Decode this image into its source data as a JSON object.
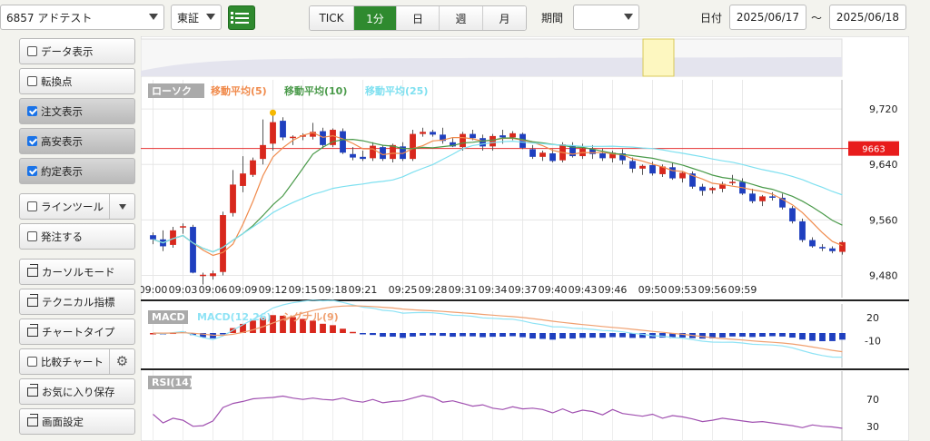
{
  "toolbar": {
    "symbol": "6857 アドテスト",
    "market": "東証",
    "period_tabs": [
      {
        "label": "TICK",
        "active": false
      },
      {
        "label": "1分",
        "active": true
      },
      {
        "label": "日",
        "active": false
      },
      {
        "label": "週",
        "active": false
      },
      {
        "label": "月",
        "active": false
      }
    ],
    "period_label": "期間",
    "period_value": "",
    "date_label": "日付",
    "date_from": "2025/06/17",
    "date_sep": "～",
    "date_to": "2025/06/18"
  },
  "sidebar": [
    {
      "label": "データ表示",
      "type": "check",
      "checked": false,
      "active": false
    },
    {
      "label": "転換点",
      "type": "check",
      "checked": false,
      "active": false
    },
    {
      "label": "注文表示",
      "type": "check",
      "checked": true,
      "active": true
    },
    {
      "label": "高安表示",
      "type": "check",
      "checked": true,
      "active": true
    },
    {
      "label": "約定表示",
      "type": "check",
      "checked": true,
      "active": true
    },
    {
      "label": "ラインツール",
      "type": "check-dropdown",
      "checked": false,
      "active": false
    },
    {
      "label": "発注する",
      "type": "check",
      "checked": false,
      "active": false
    },
    {
      "label": "カーソルモード",
      "type": "window",
      "active": false
    },
    {
      "label": "テクニカル指標",
      "type": "window",
      "active": false
    },
    {
      "label": "チャートタイプ",
      "type": "window",
      "active": false
    },
    {
      "label": "比較チャート",
      "type": "check-gear",
      "checked": false,
      "active": false
    },
    {
      "label": "お気に入り保存",
      "type": "window",
      "active": false
    },
    {
      "label": "画面設定",
      "type": "window",
      "active": false
    }
  ],
  "colors": {
    "up": "#d8281d",
    "down": "#1f3fbf",
    "ma5": "#f08a4b",
    "ma10": "#4a9a4a",
    "ma25": "#7ee0f0",
    "price_line": "#e53030",
    "macd": "#8fe3f5",
    "signal": "#f0a070",
    "rsi": "#a050b0",
    "accent": "#2f8a2f"
  },
  "chart_data": {
    "type": "candlestick",
    "legend": [
      "ローソク",
      "移動平均(5)",
      "移動平均(10)",
      "移動平均(25)"
    ],
    "y_ticks": [
      9720,
      9640,
      9560,
      9480
    ],
    "ylim": [
      9448,
      9762
    ],
    "current_price": 9663,
    "x_labels": [
      "09:00",
      "09:03",
      "09:06",
      "09:09",
      "09:12",
      "09:15",
      "09:18",
      "09:21",
      "09:25",
      "09:28",
      "09:31",
      "09:34",
      "09:37",
      "09:40",
      "09:43",
      "09:46",
      "09:50",
      "09:53",
      "09:56",
      "09:59"
    ],
    "x_label_index": [
      0,
      3,
      6,
      9,
      12,
      15,
      18,
      21,
      25,
      28,
      31,
      34,
      37,
      40,
      43,
      46,
      50,
      53,
      56,
      59
    ],
    "candles": [
      [
        9538,
        9542,
        9525,
        9532
      ],
      [
        9532,
        9545,
        9515,
        9522
      ],
      [
        9524,
        9550,
        9520,
        9545
      ],
      [
        9549,
        9555,
        9540,
        9551
      ],
      [
        9550,
        9553,
        9483,
        9484
      ],
      [
        9480,
        9484,
        9467,
        9481
      ],
      [
        9479,
        9487,
        9474,
        9483
      ],
      [
        9485,
        9572,
        9480,
        9567
      ],
      [
        9570,
        9632,
        9565,
        9611
      ],
      [
        9609,
        9652,
        9600,
        9627
      ],
      [
        9625,
        9650,
        9622,
        9646
      ],
      [
        9648,
        9705,
        9640,
        9668
      ],
      [
        9670,
        9712,
        9660,
        9701
      ],
      [
        9703,
        9708,
        9675,
        9679
      ],
      [
        9678,
        9682,
        9668,
        9680
      ],
      [
        9680,
        9685,
        9675,
        9682
      ],
      [
        9680,
        9700,
        9676,
        9687
      ],
      [
        9688,
        9693,
        9663,
        9668
      ],
      [
        9668,
        9692,
        9665,
        9690
      ],
      [
        9688,
        9692,
        9655,
        9657
      ],
      [
        9655,
        9665,
        9646,
        9650
      ],
      [
        9651,
        9660,
        9645,
        9648
      ],
      [
        9649,
        9672,
        9645,
        9667
      ],
      [
        9665,
        9668,
        9645,
        9648
      ],
      [
        9648,
        9670,
        9643,
        9668
      ],
      [
        9666,
        9672,
        9645,
        9648
      ],
      [
        9648,
        9690,
        9645,
        9684
      ],
      [
        9684,
        9693,
        9680,
        9687
      ],
      [
        9687,
        9690,
        9680,
        9683
      ],
      [
        9683,
        9693,
        9670,
        9674
      ],
      [
        9672,
        9678,
        9665,
        9666
      ],
      [
        9665,
        9687,
        9660,
        9684
      ],
      [
        9684,
        9690,
        9675,
        9678
      ],
      [
        9678,
        9683,
        9660,
        9666
      ],
      [
        9666,
        9684,
        9660,
        9681
      ],
      [
        9682,
        9690,
        9670,
        9679
      ],
      [
        9679,
        9688,
        9675,
        9685
      ],
      [
        9684,
        9686,
        9662,
        9664
      ],
      [
        9662,
        9668,
        9648,
        9651
      ],
      [
        9651,
        9660,
        9645,
        9657
      ],
      [
        9656,
        9662,
        9643,
        9645
      ],
      [
        9646,
        9672,
        9643,
        9669
      ],
      [
        9667,
        9672,
        9650,
        9652
      ],
      [
        9652,
        9670,
        9648,
        9663
      ],
      [
        9662,
        9668,
        9648,
        9655
      ],
      [
        9656,
        9663,
        9645,
        9649
      ],
      [
        9649,
        9660,
        9643,
        9657
      ],
      [
        9656,
        9662,
        9640,
        9646
      ],
      [
        9645,
        9650,
        9628,
        9634
      ],
      [
        9634,
        9640,
        9625,
        9638
      ],
      [
        9639,
        9644,
        9624,
        9627
      ],
      [
        9626,
        9640,
        9622,
        9637
      ],
      [
        9636,
        9642,
        9618,
        9620
      ],
      [
        9620,
        9630,
        9614,
        9628
      ],
      [
        9627,
        9630,
        9605,
        9608
      ],
      [
        9608,
        9612,
        9595,
        9602
      ],
      [
        9603,
        9608,
        9598,
        9606
      ],
      [
        9605,
        9615,
        9600,
        9612
      ],
      [
        9613,
        9625,
        9610,
        9615
      ],
      [
        9615,
        9620,
        9596,
        9598
      ],
      [
        9598,
        9605,
        9584,
        9587
      ],
      [
        9587,
        9596,
        9580,
        9594
      ],
      [
        9594,
        9600,
        9588,
        9592
      ],
      [
        9592,
        9598,
        9575,
        9578
      ],
      [
        9577,
        9580,
        9555,
        9558
      ],
      [
        9558,
        9562,
        9528,
        9531
      ],
      [
        9531,
        9535,
        9520,
        9522
      ],
      [
        9521,
        9525,
        9515,
        9519
      ],
      [
        9519,
        9522,
        9512,
        9515
      ],
      [
        9514,
        9530,
        9510,
        9528
      ]
    ],
    "macd_panel": {
      "legend": [
        "MACD",
        "MACD(12,26)",
        "シグナル(9)"
      ],
      "y_ticks": [
        20,
        -10
      ],
      "ylim": [
        -42,
        35
      ]
    },
    "rsi_panel": {
      "legend": [
        "RSI(14)"
      ],
      "y_ticks": [
        70,
        30
      ],
      "ylim": [
        0,
        100
      ],
      "values": [
        48,
        35,
        42,
        39,
        30,
        31,
        38,
        58,
        64,
        67,
        71,
        72,
        73,
        75,
        72,
        70,
        72,
        70,
        69,
        72,
        68,
        66,
        70,
        65,
        67,
        68,
        72,
        76,
        73,
        66,
        68,
        64,
        60,
        62,
        57,
        55,
        59,
        56,
        57,
        55,
        50,
        56,
        50,
        54,
        52,
        47,
        55,
        49,
        47,
        45,
        48,
        42,
        46,
        44,
        41,
        37,
        39,
        42,
        40,
        38,
        36,
        37,
        35,
        33,
        31,
        28,
        32,
        30,
        29,
        27
      ]
    }
  }
}
